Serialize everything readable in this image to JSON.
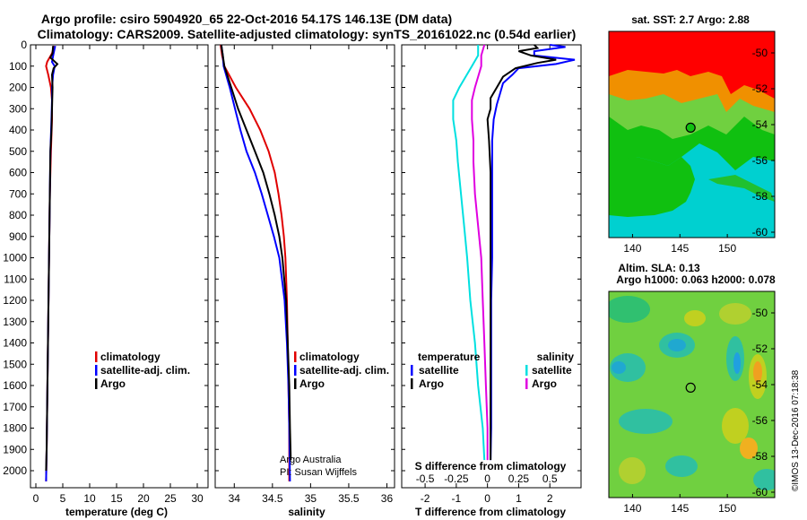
{
  "title": {
    "line1": "Argo profile: csiro 5904920_65 22-Oct-2016 54.17S 146.13E (DM data)",
    "line2": "Climatology: CARS2009. Satellite-adjusted climatology: synTS_20161022.nc (0.54d earlier)"
  },
  "colors": {
    "climatology": "#e00000",
    "satellite": "#0000ff",
    "argo": "#000000",
    "satellite_s": "#00e0e0",
    "argo_s": "#e000e0"
  },
  "chart_data": [
    {
      "type": "line",
      "id": "temperature",
      "xlabel": "temperature (deg C)",
      "ylim": [
        0,
        2080
      ],
      "xlim": [
        -1,
        32
      ],
      "xticks": [
        0,
        5,
        10,
        15,
        20,
        25,
        30
      ],
      "yticks": [
        0,
        100,
        200,
        300,
        400,
        500,
        600,
        700,
        800,
        900,
        1000,
        1100,
        1200,
        1300,
        1400,
        1500,
        1600,
        1700,
        1800,
        1900,
        2000
      ],
      "legend": [
        "climatology",
        "satellite-adj. clim.",
        "Argo"
      ],
      "series": [
        {
          "name": "climatology",
          "color": "#e00000",
          "points": [
            [
              3.4,
              5
            ],
            [
              3.0,
              40
            ],
            [
              2.1,
              80
            ],
            [
              1.9,
              100
            ],
            [
              2.3,
              140
            ],
            [
              2.8,
              200
            ],
            [
              3.0,
              260
            ],
            [
              3.0,
              350
            ],
            [
              2.8,
              500
            ],
            [
              2.6,
              700
            ],
            [
              2.5,
              900
            ],
            [
              2.4,
              1100
            ],
            [
              2.3,
              1300
            ],
            [
              2.2,
              1500
            ],
            [
              2.1,
              1700
            ],
            [
              2.0,
              1900
            ],
            [
              1.9,
              2050
            ]
          ]
        },
        {
          "name": "satellite-adj. clim.",
          "color": "#0000ff",
          "points": [
            [
              3.6,
              5
            ],
            [
              3.3,
              40
            ],
            [
              3.0,
              80
            ],
            [
              3.5,
              100
            ],
            [
              3.2,
              140
            ],
            [
              3.0,
              200
            ],
            [
              3.0,
              260
            ],
            [
              2.9,
              350
            ],
            [
              2.7,
              500
            ],
            [
              2.6,
              700
            ],
            [
              2.5,
              900
            ],
            [
              2.4,
              1100
            ],
            [
              2.3,
              1300
            ],
            [
              2.2,
              1500
            ],
            [
              2.1,
              1700
            ],
            [
              2.0,
              1900
            ],
            [
              1.9,
              2050
            ]
          ]
        },
        {
          "name": "Argo",
          "color": "#000000",
          "points": [
            [
              3.2,
              5
            ],
            [
              3.1,
              40
            ],
            [
              2.7,
              60
            ],
            [
              4.0,
              90
            ],
            [
              3.3,
              110
            ],
            [
              3.0,
              140
            ],
            [
              3.1,
              200
            ],
            [
              3.0,
              300
            ],
            [
              2.9,
              400
            ],
            [
              2.7,
              500
            ],
            [
              2.6,
              700
            ],
            [
              2.5,
              900
            ],
            [
              2.4,
              1100
            ],
            [
              2.3,
              1300
            ],
            [
              2.2,
              1500
            ],
            [
              2.1,
              1700
            ],
            [
              2.0,
              1900
            ],
            [
              1.9,
              2000
            ]
          ]
        }
      ]
    },
    {
      "type": "line",
      "id": "salinity",
      "xlabel": "salinity",
      "ylim": [
        0,
        2080
      ],
      "xlim": [
        33.75,
        36.1
      ],
      "xticks": [
        34,
        34.5,
        35,
        35.5,
        36
      ],
      "legend": [
        "climatology",
        "satellite-adj. clim.",
        "Argo"
      ],
      "annotation": [
        "Argo Australia",
        "PI: Susan Wijffels"
      ],
      "series": [
        {
          "name": "climatology",
          "color": "#e00000",
          "points": [
            [
              33.82,
              0
            ],
            [
              33.84,
              50
            ],
            [
              33.87,
              100
            ],
            [
              34.02,
              200
            ],
            [
              34.2,
              300
            ],
            [
              34.34,
              400
            ],
            [
              34.45,
              500
            ],
            [
              34.53,
              600
            ],
            [
              34.58,
              700
            ],
            [
              34.62,
              800
            ],
            [
              34.65,
              900
            ],
            [
              34.67,
              1000
            ],
            [
              34.69,
              1200
            ],
            [
              34.7,
              1400
            ],
            [
              34.71,
              1600
            ],
            [
              34.72,
              1800
            ],
            [
              34.72,
              2050
            ]
          ]
        },
        {
          "name": "satellite-adj. clim.",
          "color": "#0000ff",
          "points": [
            [
              33.83,
              0
            ],
            [
              33.85,
              50
            ],
            [
              33.86,
              100
            ],
            [
              33.94,
              200
            ],
            [
              34.01,
              300
            ],
            [
              34.08,
              400
            ],
            [
              34.16,
              500
            ],
            [
              34.27,
              600
            ],
            [
              34.36,
              700
            ],
            [
              34.44,
              800
            ],
            [
              34.52,
              900
            ],
            [
              34.59,
              1000
            ],
            [
              34.66,
              1200
            ],
            [
              34.69,
              1400
            ],
            [
              34.71,
              1600
            ],
            [
              34.72,
              1800
            ],
            [
              34.73,
              2050
            ]
          ]
        },
        {
          "name": "Argo",
          "color": "#000000",
          "points": [
            [
              33.83,
              0
            ],
            [
              33.85,
              50
            ],
            [
              33.87,
              100
            ],
            [
              33.96,
              200
            ],
            [
              34.05,
              300
            ],
            [
              34.16,
              400
            ],
            [
              34.27,
              500
            ],
            [
              34.38,
              600
            ],
            [
              34.46,
              700
            ],
            [
              34.53,
              800
            ],
            [
              34.59,
              900
            ],
            [
              34.63,
              1000
            ],
            [
              34.68,
              1200
            ],
            [
              34.7,
              1400
            ],
            [
              34.72,
              1600
            ],
            [
              34.73,
              1800
            ],
            [
              34.74,
              1950
            ]
          ]
        }
      ]
    },
    {
      "type": "line",
      "id": "difference",
      "xlabel": "T difference from climatology",
      "xlabel2": "S difference from climatology",
      "ylim": [
        0,
        2080
      ],
      "xlim": [
        -2.75,
        3.0
      ],
      "xticks": [
        -2,
        -1,
        0,
        1,
        2
      ],
      "xticks2": [
        "-0.5",
        "-0.25",
        "0",
        "0.25",
        "0.5"
      ],
      "xticks2_pos": [
        -2,
        -1,
        0,
        1,
        2
      ],
      "legend_left_title": "temperature",
      "legend_right_title": "salinity",
      "legend_left": [
        "satellite",
        "Argo"
      ],
      "legend_right": [
        "satellite",
        "Argo"
      ],
      "series": [
        {
          "name": "T satellite",
          "color": "#0000ff",
          "points": [
            [
              2.0,
              0
            ],
            [
              2.5,
              10
            ],
            [
              1.5,
              30
            ],
            [
              1.5,
              50
            ],
            [
              2.8,
              70
            ],
            [
              2.2,
              90
            ],
            [
              1.0,
              110
            ],
            [
              0.8,
              140
            ],
            [
              0.5,
              180
            ],
            [
              0.4,
              230
            ],
            [
              0.3,
              280
            ],
            [
              0.2,
              350
            ],
            [
              0.15,
              450
            ],
            [
              0.15,
              600
            ],
            [
              0.15,
              800
            ],
            [
              0.15,
              1000
            ],
            [
              0.12,
              1200
            ],
            [
              0.12,
              1400
            ],
            [
              0.12,
              1600
            ],
            [
              0.12,
              1800
            ],
            [
              0.1,
              1950
            ]
          ]
        },
        {
          "name": "T Argo",
          "color": "#000000",
          "points": [
            [
              1.5,
              0
            ],
            [
              1.6,
              15
            ],
            [
              1.0,
              30
            ],
            [
              1.4,
              50
            ],
            [
              2.2,
              70
            ],
            [
              1.6,
              85
            ],
            [
              0.9,
              110
            ],
            [
              0.5,
              150
            ],
            [
              0.3,
              200
            ],
            [
              0.1,
              250
            ],
            [
              0.1,
              300
            ],
            [
              0.0,
              350
            ],
            [
              0.05,
              450
            ],
            [
              0.1,
              600
            ],
            [
              0.1,
              800
            ],
            [
              0.1,
              1000
            ],
            [
              0.1,
              1200
            ],
            [
              0.1,
              1400
            ],
            [
              0.1,
              1600
            ],
            [
              0.1,
              1800
            ],
            [
              0.1,
              1950
            ]
          ]
        },
        {
          "name": "S satellite",
          "color": "#00e0e0",
          "points": [
            [
              -0.3,
              0
            ],
            [
              -0.3,
              50
            ],
            [
              -0.5,
              100
            ],
            [
              -0.7,
              150
            ],
            [
              -0.9,
              200
            ],
            [
              -1.1,
              260
            ],
            [
              -1.1,
              350
            ],
            [
              -1.0,
              450
            ],
            [
              -0.95,
              550
            ],
            [
              -0.85,
              700
            ],
            [
              -0.75,
              850
            ],
            [
              -0.65,
              1000
            ],
            [
              -0.55,
              1200
            ],
            [
              -0.4,
              1400
            ],
            [
              -0.3,
              1600
            ],
            [
              -0.15,
              1800
            ],
            [
              -0.1,
              1950
            ]
          ]
        },
        {
          "name": "S Argo",
          "color": "#e000e0",
          "points": [
            [
              -0.1,
              0
            ],
            [
              -0.2,
              50
            ],
            [
              -0.2,
              100
            ],
            [
              -0.3,
              150
            ],
            [
              -0.4,
              200
            ],
            [
              -0.5,
              260
            ],
            [
              -0.5,
              350
            ],
            [
              -0.45,
              450
            ],
            [
              -0.45,
              550
            ],
            [
              -0.4,
              700
            ],
            [
              -0.3,
              850
            ],
            [
              -0.2,
              1000
            ],
            [
              -0.15,
              1200
            ],
            [
              -0.1,
              1400
            ],
            [
              -0.05,
              1600
            ],
            [
              0.0,
              1800
            ],
            [
              0.0,
              1950
            ]
          ]
        }
      ]
    }
  ],
  "maps": [
    {
      "id": "sst-map",
      "title": "sat. SST: 2.7 Argo: 2.88",
      "xlim": [
        137.5,
        155
      ],
      "ylim": [
        -60.3,
        -48.8
      ],
      "xticks": [
        140,
        145,
        150
      ],
      "yticks": [
        -50,
        -52,
        -54,
        -56,
        -58,
        -60
      ],
      "marker": [
        146.13,
        -54.17
      ]
    },
    {
      "id": "sla-map",
      "title1": "Altim. SLA: 0.13",
      "title2": "Argo h1000: 0.063 h2000: 0.078",
      "xlim": [
        137.5,
        155
      ],
      "ylim": [
        -60.3,
        -48.8
      ],
      "xticks": [
        140,
        145,
        150
      ],
      "yticks": [
        -50,
        -52,
        -54,
        -56,
        -58,
        -60
      ],
      "marker": [
        146.13,
        -54.17
      ]
    }
  ],
  "stamp": "©IMOS 13-Dec-2016 07:18:38"
}
